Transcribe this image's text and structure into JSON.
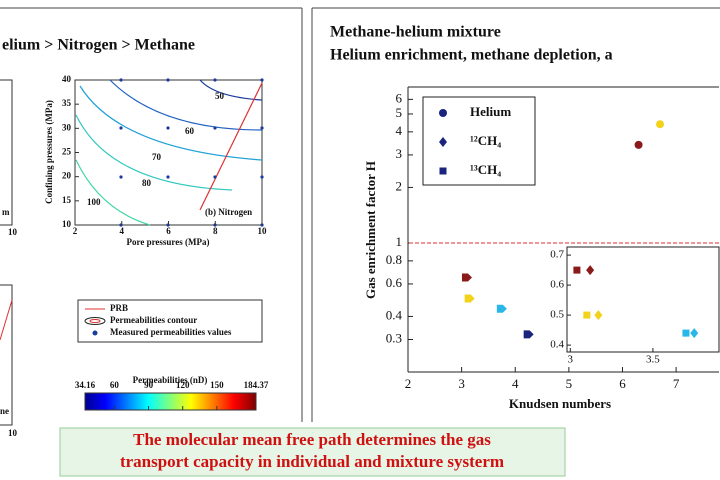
{
  "left_heading": "elium > Nitrogen > Methane",
  "right_heading": [
    "Methane-helium mixture",
    "Helium enrichment, methane depletion, a"
  ],
  "fragments": [
    "m",
    "10",
    "ne",
    "10"
  ],
  "nitrogen_panel": {
    "xlabel": "Pore pressures (MPa)",
    "ylabel": "Confining pressures (MPa)",
    "xlim": [
      2,
      10
    ],
    "ylim": [
      10,
      40
    ],
    "xticks": [
      2,
      4,
      6,
      8,
      10
    ],
    "yticks": [
      10,
      15,
      20,
      25,
      30,
      35,
      40
    ],
    "contour_labels": [
      "50",
      "60",
      "70",
      "80",
      "100"
    ],
    "panel_label": "(b) Nitrogen"
  },
  "legend": [
    "PRB",
    "Permeabilities contour",
    "Measured permeabilities values"
  ],
  "colorbar": {
    "title": "Permeabilities (nD)",
    "ticks": [
      34.16,
      60,
      90,
      120,
      150,
      184.37
    ]
  },
  "caption": [
    "The molecular mean free path determines the gas",
    "transport capacity in individual and mixture systerm"
  ],
  "chart_data": {
    "type": "scatter",
    "xlabel": "Knudsen numbers",
    "ylabel": "Gas enrichment factor H",
    "xlim": [
      2,
      7.8
    ],
    "ylim": [
      0.2,
      7
    ],
    "log_y": true,
    "xticks": [
      2,
      3,
      4,
      5,
      6,
      7
    ],
    "yticks": [
      0.3,
      0.4,
      0.6,
      0.8,
      1,
      2,
      3,
      4,
      5,
      6
    ],
    "reference_line": 1,
    "reference_color": "#e03030",
    "series": [
      {
        "name": "Helium",
        "marker": "circle",
        "x": [
          6.3,
          6.7
        ],
        "values": [
          3.4,
          4.4
        ],
        "colors": [
          "#8b1a1a",
          "#f2d21b"
        ]
      },
      {
        "marker": "pentagon",
        "x": [
          3.1,
          3.15,
          3.75,
          4.25
        ],
        "values": [
          0.65,
          0.5,
          0.44,
          0.32
        ],
        "colors": [
          "#8b1a1a",
          "#f2d21b",
          "#29b6e8",
          "#1a237e"
        ]
      }
    ],
    "inset": {
      "xlim": [
        2.98,
        3.9
      ],
      "ylim": [
        0.377,
        0.727
      ],
      "xticks": [
        3,
        3.5
      ],
      "yticks": [
        0.4,
        0.5,
        0.6,
        0.7
      ],
      "series": [
        {
          "name": "¹²CH₄",
          "marker": "diamond",
          "x": [
            3.12,
            3.17,
            3.75
          ],
          "values": [
            0.65,
            0.5,
            0.44
          ],
          "colors": [
            "#8b1a1a",
            "#f2d21b",
            "#29b6e8"
          ]
        },
        {
          "name": "¹³CH₄",
          "marker": "square",
          "x": [
            3.04,
            3.1,
            3.7
          ],
          "values": [
            0.65,
            0.5,
            0.44
          ],
          "colors": [
            "#8b1a1a",
            "#f2d21b",
            "#29b6e8"
          ]
        }
      ]
    },
    "legend_color": "#1a237e"
  }
}
